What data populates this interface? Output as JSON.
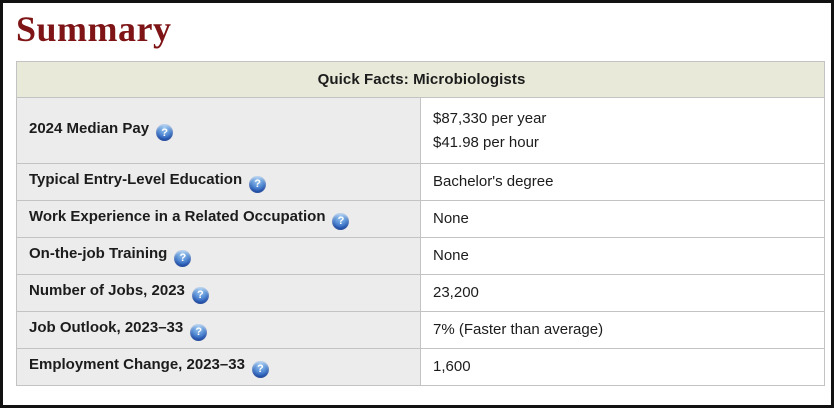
{
  "colors": {
    "heading-red": "#7e1416",
    "table-header-bg": "#e8e9d8",
    "label-col-bg": "#ececec",
    "table-border-outer": "#9a9a9a",
    "table-border-inner": "#c3c3c3",
    "help-icon-blue": "#2f67c4",
    "frame-border": "#111111",
    "text": "#1c1c1c"
  },
  "page": {
    "title": "Summary"
  },
  "table": {
    "title": "Quick Facts: Microbiologists",
    "help_glyph": "?",
    "rows": [
      {
        "label": "2024 Median Pay",
        "values": [
          "$87,330 per year",
          "$41.98 per hour"
        ]
      },
      {
        "label": "Typical Entry-Level Education",
        "values": [
          "Bachelor's degree"
        ]
      },
      {
        "label": "Work Experience in a Related Occupation",
        "values": [
          "None"
        ]
      },
      {
        "label": "On-the-job Training",
        "values": [
          "None"
        ]
      },
      {
        "label": "Number of Jobs, 2023",
        "values": [
          "23,200"
        ]
      },
      {
        "label": "Job Outlook, 2023–33",
        "values": [
          "7% (Faster than average)"
        ]
      },
      {
        "label": "Employment Change, 2023–33",
        "values": [
          "1,600"
        ]
      }
    ]
  }
}
